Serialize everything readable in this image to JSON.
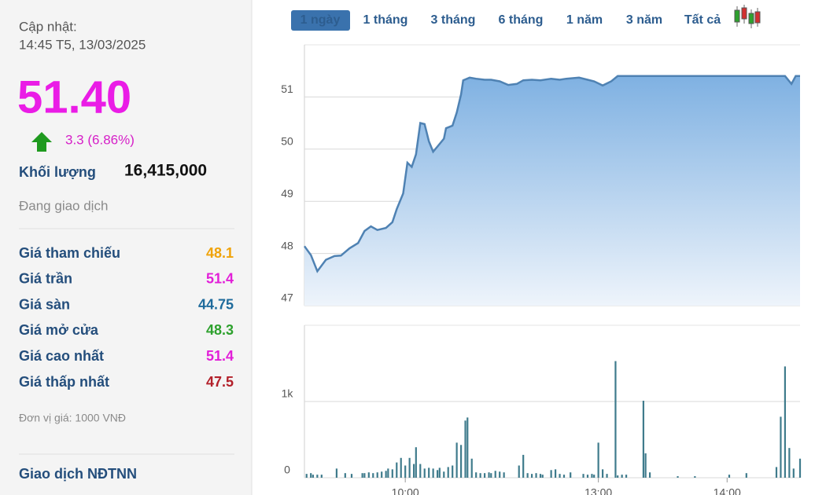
{
  "panel": {
    "update_label": "Cập nhật:",
    "update_time": "14:45 T5, 13/03/2025",
    "price": "51.40",
    "change": "3.3 (6.86%)",
    "volume_label": "Khối lượng",
    "volume": "16,415,000",
    "status": "Đang giao dịch",
    "rows": [
      {
        "label": "Giá tham chiếu",
        "value": "48.1",
        "color": "#f0a30a"
      },
      {
        "label": "Giá trần",
        "value": "51.4",
        "color": "#e21fd8"
      },
      {
        "label": "Giá sàn",
        "value": "44.75",
        "color": "#1f6b9c"
      },
      {
        "label": "Giá mở cửa",
        "value": "48.3",
        "color": "#2ea12e"
      },
      {
        "label": "Giá cao nhất",
        "value": "51.4",
        "color": "#e21fd8"
      },
      {
        "label": "Giá thấp nhất",
        "value": "47.5",
        "color": "#b3202a"
      }
    ],
    "unit_note": "Đơn vị giá: 1000 VNĐ",
    "foreign_title": "Giao dịch NĐTNN"
  },
  "tabs": {
    "items": [
      "1 ngày",
      "1 tháng",
      "3 tháng",
      "6 tháng",
      "1 năm",
      "3 năm",
      "Tất cả"
    ],
    "active": 0
  },
  "chart_data": [
    {
      "type": "area",
      "color": "#4f82b3",
      "x": [
        13,
        16,
        19,
        23,
        27,
        30,
        34,
        38,
        41,
        44,
        47,
        51,
        54,
        56,
        59,
        61,
        63,
        65,
        67,
        69,
        71,
        73,
        75,
        78,
        79,
        82,
        84,
        86,
        87,
        90,
        93,
        97,
        100,
        104,
        108,
        112,
        115,
        119,
        123,
        128,
        132,
        135,
        141,
        145,
        148,
        152,
        156,
        159,
        165,
        183,
        202,
        220,
        237,
        240,
        242,
        244
      ],
      "values": [
        48.14,
        47.97,
        47.66,
        47.88,
        47.95,
        47.96,
        48.1,
        48.2,
        48.43,
        48.52,
        48.45,
        48.49,
        48.6,
        48.85,
        49.15,
        49.74,
        49.66,
        49.9,
        50.5,
        50.48,
        50.15,
        49.95,
        50.05,
        50.2,
        50.4,
        50.45,
        50.7,
        51.05,
        51.32,
        51.37,
        51.35,
        51.33,
        51.33,
        51.3,
        51.23,
        51.25,
        51.32,
        51.33,
        51.32,
        51.35,
        51.33,
        51.35,
        51.37,
        51.33,
        51.3,
        51.22,
        51.3,
        51.4,
        51.4,
        51.4,
        51.4,
        51.4,
        51.4,
        51.25,
        51.4,
        51.4
      ],
      "xlim": [
        13,
        244
      ],
      "ylim": [
        47,
        52
      ],
      "yticks": [
        47,
        48,
        49,
        50,
        51
      ],
      "grid": true
    },
    {
      "type": "bar",
      "color": "#3f7b8c",
      "x": [
        14,
        16,
        17,
        19,
        21,
        28,
        32,
        35,
        40,
        41,
        43,
        45,
        47,
        49,
        51,
        52,
        54,
        56,
        58,
        60,
        62,
        64,
        65,
        67,
        69,
        71,
        73,
        75,
        76,
        78,
        80,
        82,
        84,
        86,
        88,
        89,
        91,
        93,
        95,
        97,
        99,
        100,
        102,
        104,
        106,
        113,
        115,
        117,
        119,
        121,
        123,
        124,
        128,
        130,
        132,
        134,
        137,
        143,
        145,
        147,
        148,
        150,
        152,
        154,
        158,
        159,
        161,
        163,
        171,
        172,
        174,
        187,
        195,
        211,
        219,
        233,
        235,
        237,
        239,
        241,
        244
      ],
      "values": [
        50,
        60,
        40,
        40,
        40,
        120,
        60,
        50,
        60,
        60,
        70,
        60,
        70,
        80,
        90,
        120,
        110,
        200,
        260,
        160,
        260,
        180,
        400,
        180,
        120,
        130,
        120,
        100,
        130,
        80,
        140,
        160,
        460,
        430,
        750,
        790,
        250,
        70,
        60,
        60,
        70,
        60,
        90,
        80,
        70,
        160,
        300,
        60,
        50,
        60,
        50,
        40,
        100,
        110,
        50,
        40,
        70,
        50,
        40,
        50,
        40,
        460,
        110,
        50,
        1530,
        30,
        40,
        40,
        1010,
        320,
        70,
        20,
        20,
        40,
        60,
        140,
        800,
        1460,
        390,
        120,
        250
      ],
      "xlim": [
        13,
        244
      ],
      "ylim": [
        0,
        2000
      ],
      "yticks": [
        0,
        {
          "value": 1000,
          "label": "1k"
        }
      ],
      "xticks": [
        {
          "value": 60,
          "label": "10:00"
        },
        {
          "value": 150,
          "label": "13:00"
        },
        {
          "value": 210,
          "label": "14:00"
        }
      ],
      "grid": true
    }
  ]
}
